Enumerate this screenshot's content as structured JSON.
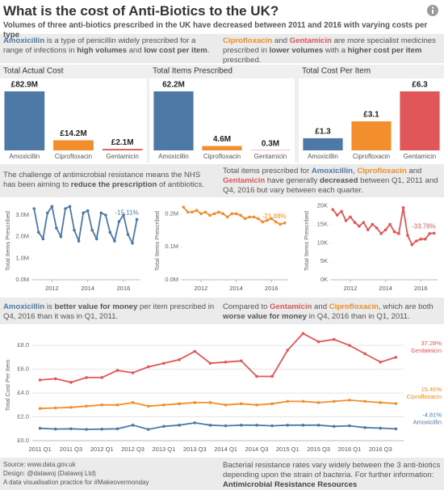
{
  "header": {
    "title": "What is the cost of Anti-Biotics to the UK?",
    "subtitle": "Volumes of three anti-biotics prescribed in the UK have decreased between 2011 and 2016 with varying costs per type"
  },
  "intro": {
    "left": [
      {
        "text": "Amoxicillin",
        "color": "#4e79a7",
        "bold": true
      },
      {
        "text": " is a type of penicillin widely prescribed for a range of infections in "
      },
      {
        "text": "high volumes",
        "bold": true
      },
      {
        "text": " and "
      },
      {
        "text": "low cost per item",
        "bold": true
      },
      {
        "text": "."
      }
    ],
    "right": [
      {
        "text": "Ciprofloxacin",
        "color": "#f28e2b",
        "bold": true
      },
      {
        "text": " and "
      },
      {
        "text": "Gentamicin",
        "color": "#e15759",
        "bold": true
      },
      {
        "text": " are more specialist medicines prescribed in "
      },
      {
        "text": "lower volumes",
        "bold": true
      },
      {
        "text": " with a "
      },
      {
        "text": "higher cost per item",
        "bold": true
      },
      {
        "text": " prescribed."
      }
    ]
  },
  "middle": {
    "left": [
      {
        "text": "The challenge of antimicrobial resistance means the NHS has been aiming to "
      },
      {
        "text": "reduce the prescription",
        "bold": true
      },
      {
        "text": " of antibiotics."
      }
    ],
    "right": [
      {
        "text": "Total items prescribed for "
      },
      {
        "text": "Amoxicillin",
        "color": "#4e79a7",
        "bold": true
      },
      {
        "text": ", "
      },
      {
        "text": "Ciprofloxacin",
        "color": "#f28e2b",
        "bold": true
      },
      {
        "text": " and "
      },
      {
        "text": "Gentamicin",
        "color": "#e15759",
        "bold": true
      },
      {
        "text": " have generally "
      },
      {
        "text": "decreased",
        "bold": true
      },
      {
        "text": " between Q1, 2011 and Q4, 2016 but vary between each quarter."
      }
    ]
  },
  "lower": {
    "left": [
      {
        "text": "Amoxicillin",
        "color": "#4e79a7",
        "bold": true
      },
      {
        "text": " is "
      },
      {
        "text": "better value for money",
        "bold": true
      },
      {
        "text": " per item prescribed in Q4, 2016 than it was in Q1, 2011."
      }
    ],
    "right": [
      {
        "text": "Compared to "
      },
      {
        "text": "Gentamicin",
        "color": "#e15759",
        "bold": true
      },
      {
        "text": " and "
      },
      {
        "text": "Ciprofloxacin",
        "color": "#f28e2b",
        "bold": true
      },
      {
        "text": ", which are both "
      },
      {
        "text": "worse value for money",
        "bold": true
      },
      {
        "text": " in Q4, 2016 than in Q1, 2011."
      }
    ]
  },
  "chart_data": [
    {
      "type": "bar",
      "title": "Total Actual Cost",
      "categories": [
        "Amoxicillin",
        "Ciprofloxacin",
        "Gentamicin"
      ],
      "values": [
        82.9,
        14.2,
        2.1
      ],
      "value_labels": [
        "£82.9M",
        "£14.2M",
        "£2.1M"
      ],
      "colors": [
        "#4e79a7",
        "#f28e2b",
        "#e15759"
      ]
    },
    {
      "type": "bar",
      "title": "Total Items Prescribed",
      "categories": [
        "Amoxicillin",
        "Ciprofloxacin",
        "Gentamicin"
      ],
      "values": [
        62.2,
        4.6,
        0.3
      ],
      "value_labels": [
        "62.2M",
        "4.6M",
        "0.3M"
      ],
      "colors": [
        "#4e79a7",
        "#f28e2b",
        "#e15759"
      ]
    },
    {
      "type": "bar",
      "title": "Total Cost Per Item",
      "categories": [
        "Amoxicillin",
        "Ciprofloxacin",
        "Gentamicin"
      ],
      "values": [
        1.3,
        3.1,
        6.3
      ],
      "value_labels": [
        "£1.3",
        "£3.1",
        "£6.3"
      ],
      "colors": [
        "#4e79a7",
        "#f28e2b",
        "#e15759"
      ]
    },
    {
      "type": "line",
      "y_label": "Total Items Prescribed",
      "x": [
        2011,
        2011.25,
        2011.5,
        2011.75,
        2012,
        2012.25,
        2012.5,
        2012.75,
        2013,
        2013.25,
        2013.5,
        2013.75,
        2014,
        2014.25,
        2014.5,
        2014.75,
        2015,
        2015.25,
        2015.5,
        2015.75,
        2016,
        2016.25,
        2016.5,
        2016.75
      ],
      "xlim": [
        2010.9,
        2016.95
      ],
      "xticks": [
        2012,
        2014,
        2016
      ],
      "ylim": [
        0,
        3.6
      ],
      "yticks": [
        {
          "value": 0,
          "label": "0.0M"
        },
        {
          "value": 1,
          "label": "1.0M"
        },
        {
          "value": 2,
          "label": "2.0M"
        },
        {
          "value": 3,
          "label": "3.0M"
        }
      ],
      "series": [
        {
          "color": "#4e79a7",
          "change": "-15.11%",
          "values": [
            3.3,
            2.2,
            1.9,
            3.1,
            3.4,
            2.4,
            2.0,
            3.3,
            3.4,
            2.3,
            1.8,
            3.1,
            3.2,
            2.3,
            1.9,
            3.1,
            3.0,
            2.2,
            1.8,
            2.7,
            3.0,
            2.1,
            1.7,
            2.8
          ]
        }
      ]
    },
    {
      "type": "line",
      "y_label": "Total Items Prescribed",
      "x": [
        2011,
        2011.25,
        2011.5,
        2011.75,
        2012,
        2012.25,
        2012.5,
        2012.75,
        2013,
        2013.25,
        2013.5,
        2013.75,
        2014,
        2014.25,
        2014.5,
        2014.75,
        2015,
        2015.25,
        2015.5,
        2015.75,
        2016,
        2016.25,
        2016.5,
        2016.75
      ],
      "xlim": [
        2010.9,
        2016.95
      ],
      "xticks": [
        2012,
        2014,
        2016
      ],
      "ylim": [
        0,
        0.235
      ],
      "yticks": [
        {
          "value": 0,
          "label": "0.0M"
        },
        {
          "value": 0.1,
          "label": "0.1M"
        },
        {
          "value": 0.2,
          "label": "0.2M"
        }
      ],
      "series": [
        {
          "color": "#f28e2b",
          "change": "-21.88%",
          "values": [
            0.22,
            0.205,
            0.205,
            0.21,
            0.2,
            0.205,
            0.195,
            0.2,
            0.205,
            0.2,
            0.19,
            0.2,
            0.2,
            0.195,
            0.185,
            0.19,
            0.19,
            0.185,
            0.175,
            0.18,
            0.185,
            0.175,
            0.168,
            0.172
          ]
        }
      ]
    },
    {
      "type": "line",
      "y_label": "Total Items Prescribed",
      "x": [
        2011,
        2011.25,
        2011.5,
        2011.75,
        2012,
        2012.25,
        2012.5,
        2012.75,
        2013,
        2013.25,
        2013.5,
        2013.75,
        2014,
        2014.25,
        2014.5,
        2014.75,
        2015,
        2015.25,
        2015.5,
        2015.75,
        2016,
        2016.25,
        2016.5,
        2016.75
      ],
      "xlim": [
        2010.9,
        2016.95
      ],
      "xticks": [
        2012,
        2014,
        2016
      ],
      "ylim": [
        0,
        21
      ],
      "yticks": [
        {
          "value": 0,
          "label": "0K"
        },
        {
          "value": 5,
          "label": "5K"
        },
        {
          "value": 10,
          "label": "10K"
        },
        {
          "value": 15,
          "label": "15K"
        },
        {
          "value": 20,
          "label": "20K"
        }
      ],
      "series": [
        {
          "color": "#e15759",
          "change": "-33.78%",
          "values": [
            19.0,
            17.5,
            18.5,
            16.0,
            17.0,
            15.5,
            14.5,
            15.5,
            13.5,
            15.0,
            14.0,
            12.5,
            13.5,
            15.0,
            13.0,
            12.5,
            19.5,
            12.0,
            9.5,
            10.5,
            11.0,
            11.0,
            12.5,
            12.6
          ]
        }
      ]
    },
    {
      "type": "line",
      "y_label": "Total Cost Per Item",
      "grid": true,
      "categories": [
        "2011 Q1",
        null,
        "2011 Q3",
        null,
        "2012 Q1",
        null,
        "2012 Q3",
        null,
        "2013 Q1",
        null,
        "2013 Q3",
        null,
        "2014 Q1",
        null,
        "2014 Q3",
        null,
        "2015 Q1",
        null,
        "2015 Q3",
        null,
        "2016 Q1",
        null,
        "2016 Q3",
        null
      ],
      "ylim": [
        0,
        9.3
      ],
      "yticks": [
        {
          "value": 0,
          "label": "£0.0"
        },
        {
          "value": 2,
          "label": "£2.0"
        },
        {
          "value": 4,
          "label": "£4.0"
        },
        {
          "value": 6,
          "label": "£6.0"
        },
        {
          "value": 8,
          "label": "£8.0"
        }
      ],
      "series": [
        {
          "name": "Gentamicin",
          "color": "#e15759",
          "change": "37.28%",
          "values": [
            5.1,
            5.2,
            4.9,
            5.3,
            5.3,
            5.9,
            5.7,
            6.2,
            6.5,
            6.8,
            7.5,
            6.5,
            6.6,
            6.7,
            5.4,
            5.4,
            7.6,
            9.0,
            8.3,
            8.5,
            8.0,
            7.3,
            6.6,
            7.0
          ]
        },
        {
          "name": "Ciprofloxacin",
          "color": "#f28e2b",
          "change": "15.46%",
          "values": [
            2.7,
            2.75,
            2.8,
            2.9,
            3.0,
            3.0,
            3.2,
            2.9,
            3.0,
            3.1,
            3.2,
            3.2,
            3.0,
            3.1,
            3.0,
            3.1,
            3.3,
            3.3,
            3.2,
            3.3,
            3.4,
            3.3,
            3.2,
            3.12
          ]
        },
        {
          "name": "Amoxicillin",
          "color": "#4e79a7",
          "change": "-4.81%",
          "values": [
            1.04,
            0.98,
            1.0,
            0.95,
            0.97,
            1.0,
            1.3,
            0.95,
            1.2,
            1.3,
            1.5,
            1.3,
            1.25,
            1.3,
            1.3,
            1.25,
            1.3,
            1.3,
            1.3,
            1.2,
            1.25,
            1.1,
            1.05,
            0.99
          ]
        }
      ]
    }
  ],
  "footer": {
    "credits": [
      "Source: www.data.gov.uk",
      "Design: @datawoj (Datawoj Ltd)",
      "A data visualisation practice for #Makeovermonday"
    ],
    "note": "Bacterial resistance rates vary widely between the 3 anti-biotics depending upon the strain of bacteria.  For further information:",
    "link": "Antimicrobial Resistance Resources"
  }
}
